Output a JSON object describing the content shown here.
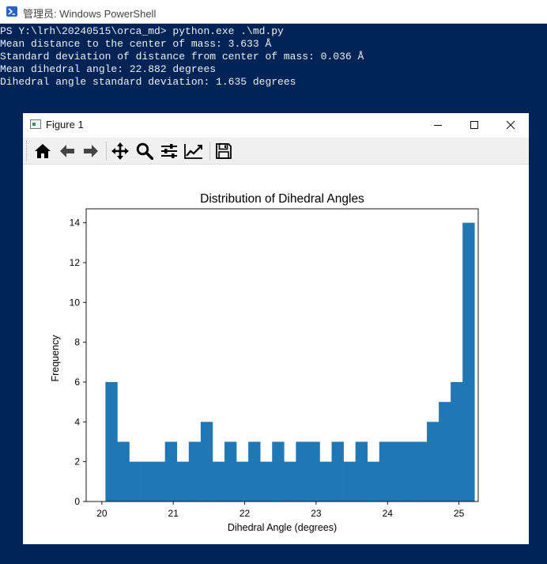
{
  "powershell": {
    "title": "管理员: Windows PowerShell",
    "lines": [
      "PS Y:\\lrh\\20240515\\orca_md> python.exe .\\md.py",
      "Mean distance to the center of mass: 3.633 Å",
      "Standard deviation of distance from center of mass: 0.036 Å",
      "Mean dihedral angle: 22.882 degrees",
      "Dihedral angle standard deviation: 1.635 degrees"
    ]
  },
  "figure_window": {
    "title": "Figure 1",
    "window_buttons": [
      "minimize-icon",
      "maximize-icon",
      "close-icon"
    ],
    "toolbar": [
      "home-icon",
      "back-arrow-icon",
      "forward-arrow-icon",
      "pan-move-icon",
      "zoom-magnifier-icon",
      "subplots-config-icon",
      "axes-edit-icon",
      "save-disk-icon"
    ]
  },
  "colors": {
    "console_bg": "#012456",
    "bar": "#1f77b4"
  },
  "chart_data": {
    "type": "bar",
    "title": "Distribution of Dihedral Angles",
    "xlabel": "Dihedral Angle (degrees)",
    "ylabel": "Frequency",
    "bin_start": 20.05,
    "bin_width": 0.1667,
    "values": [
      6,
      3,
      2,
      2,
      2,
      3,
      2,
      3,
      4,
      2,
      3,
      2,
      3,
      2,
      3,
      2,
      3,
      3,
      2,
      3,
      2,
      3,
      2,
      3,
      3,
      3,
      3,
      4,
      5,
      6,
      14
    ],
    "xlim": [
      19.78,
      25.27
    ],
    "ylim": [
      0,
      14.7
    ],
    "xticks": [
      20,
      21,
      22,
      23,
      24,
      25
    ],
    "yticks": [
      0,
      2,
      4,
      6,
      8,
      10,
      12,
      14
    ],
    "grid": false
  }
}
